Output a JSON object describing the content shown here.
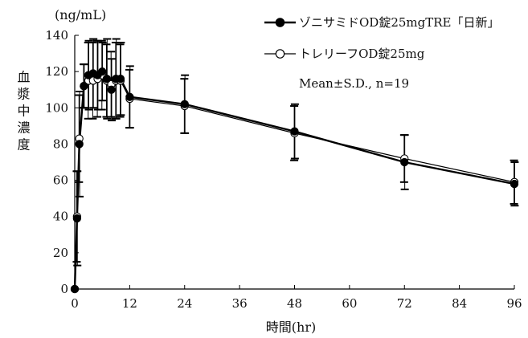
{
  "chart_data": {
    "type": "line",
    "y_unit": "(ng/mL)",
    "xlabel": "時間(hr)",
    "ylabel": "血漿中濃度",
    "xlim": [
      0,
      96
    ],
    "ylim": [
      0,
      140
    ],
    "x_ticks": [
      0,
      12,
      24,
      36,
      48,
      60,
      72,
      84,
      96
    ],
    "y_ticks": [
      0,
      20,
      40,
      60,
      80,
      100,
      120,
      140
    ],
    "note": "Mean±S.D., n=19",
    "grid": false,
    "legend_position": "top-right",
    "x": [
      0,
      0.5,
      1,
      2,
      3,
      4,
      5,
      6,
      7,
      8,
      9,
      10,
      12,
      24,
      48,
      72,
      96
    ],
    "series": [
      {
        "name": "ゾニサミドOD錠25mgTRE「日新」",
        "marker": "filled-circle",
        "color": "#000000",
        "values": [
          0,
          39,
          80,
          112,
          118,
          119,
          118,
          120,
          116,
          110,
          116,
          116,
          106,
          102,
          87,
          70,
          58
        ],
        "sd": [
          0,
          26,
          29,
          12,
          19,
          19,
          19,
          16,
          22,
          17,
          22,
          20,
          17,
          16,
          15,
          15,
          12
        ]
      },
      {
        "name": "トレリーフOD錠25mg",
        "marker": "open-circle",
        "color": "#000000",
        "values": [
          0,
          40,
          83,
          112,
          115,
          115,
          116,
          118,
          115,
          113,
          115,
          115,
          105,
          101,
          86,
          72,
          59
        ],
        "sd": [
          0,
          25,
          24,
          12,
          21,
          21,
          21,
          19,
          20,
          18,
          21,
          20,
          16,
          15,
          15,
          13,
          12
        ]
      }
    ]
  }
}
